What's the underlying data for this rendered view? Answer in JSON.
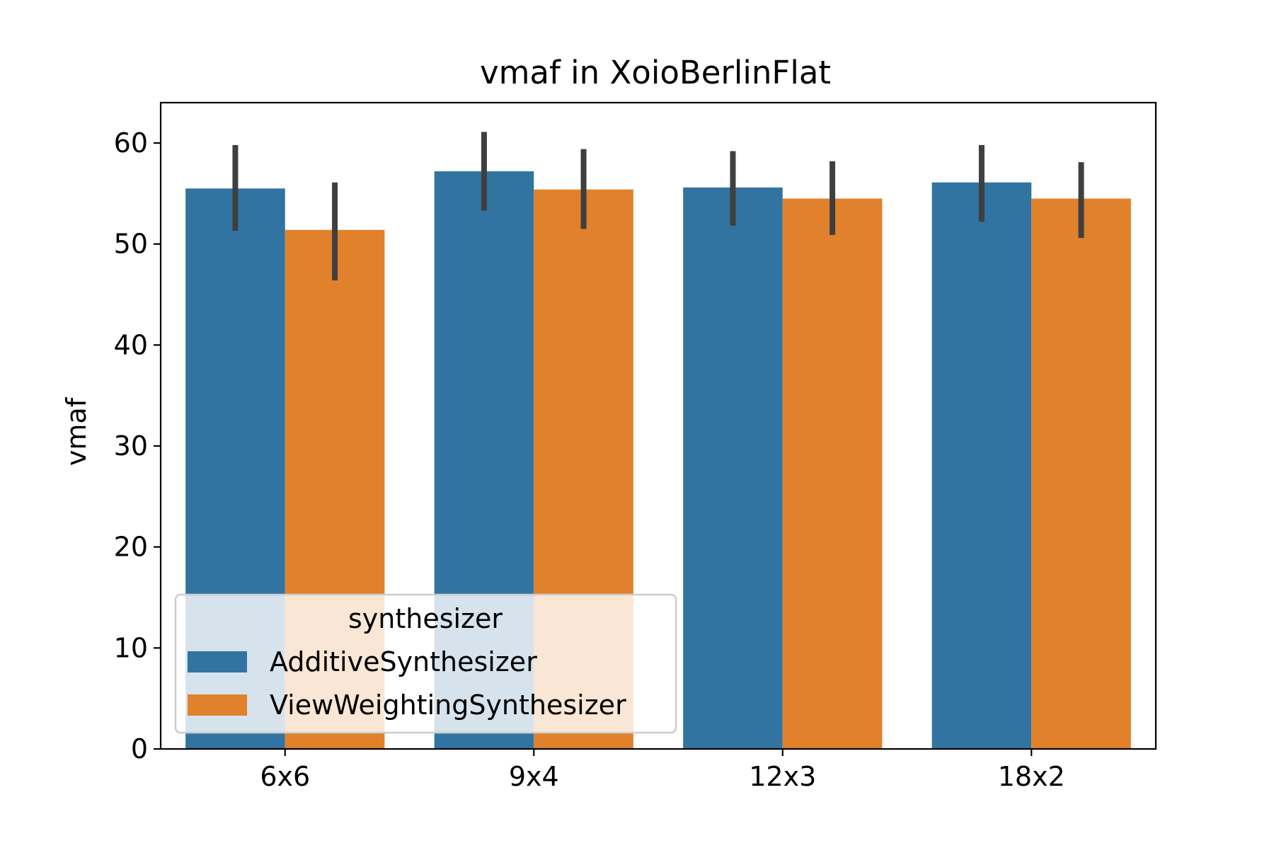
{
  "chart_data": {
    "type": "bar",
    "title": "vmaf in XoioBerlinFlat",
    "xlabel": "",
    "ylabel": "vmaf",
    "ylim": [
      0,
      64
    ],
    "yticks": [
      "0",
      "10",
      "20",
      "30",
      "40",
      "50",
      "60"
    ],
    "categories": [
      "6x6",
      "9x4",
      "12x3",
      "18x2"
    ],
    "grid": false,
    "legend": {
      "title": "synthesizer",
      "placement": "lower-left"
    },
    "series": [
      {
        "name": "AdditiveSynthesizer",
        "color": "#3274a1",
        "values": [
          55.5,
          57.2,
          55.6,
          56.1
        ],
        "ci_low": [
          51.3,
          53.3,
          51.8,
          52.2
        ],
        "ci_high": [
          59.8,
          61.1,
          59.2,
          59.8
        ]
      },
      {
        "name": "ViewWeightingSynthesizer",
        "color": "#e1812c",
        "values": [
          51.4,
          55.4,
          54.5,
          54.5
        ],
        "ci_low": [
          46.4,
          51.5,
          50.9,
          50.6
        ],
        "ci_high": [
          56.1,
          59.4,
          58.2,
          58.1
        ]
      }
    ],
    "error_bar_color": "#3f3f3f"
  }
}
